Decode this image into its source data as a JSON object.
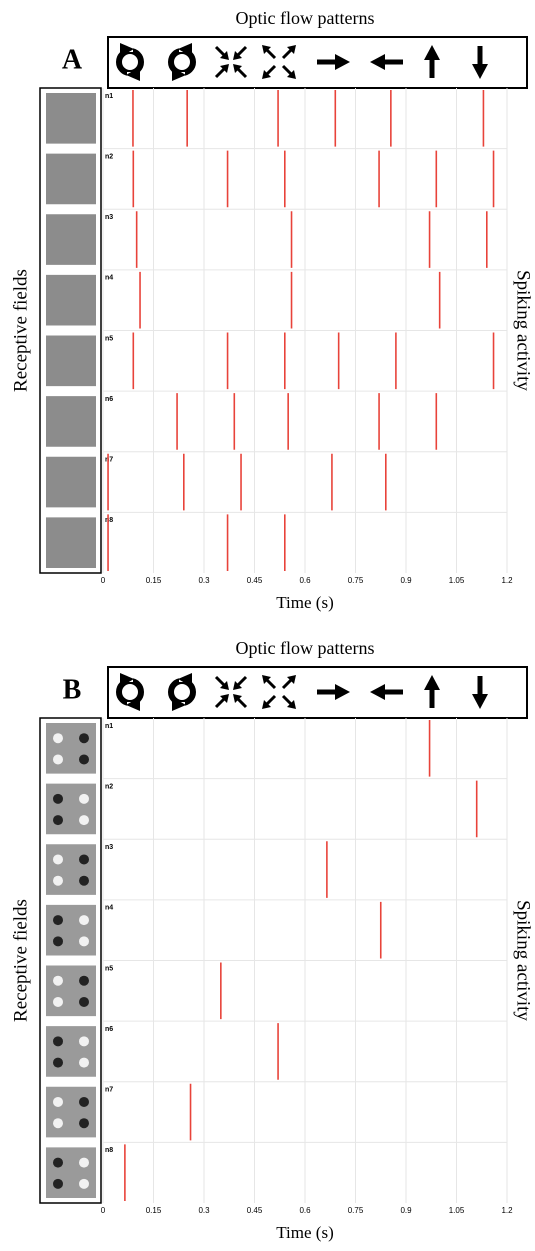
{
  "chart_data": [
    {
      "type": "raster",
      "panel": "A",
      "title": "Optic flow patterns",
      "ylabel": "Receptive fields",
      "y2label": "Spiking activity",
      "xlabel": "Time (s)",
      "xlim": [
        0,
        1.2
      ],
      "xticks": [
        0,
        0.15,
        0.3,
        0.45,
        0.6,
        0.75,
        0.9,
        1.05,
        1.2
      ],
      "grid": true,
      "color": "#e8433a",
      "receptive_fields": "noise",
      "categories": [
        "n1",
        "n2",
        "n3",
        "n4",
        "n5",
        "n6",
        "n7",
        "n8"
      ],
      "spikes": [
        [
          0.089,
          0.25,
          0.52,
          0.69,
          0.855,
          1.13
        ],
        [
          0.09,
          0.37,
          0.54,
          0.82,
          0.99,
          1.16
        ],
        [
          0.1,
          0.56,
          0.97,
          1.14
        ],
        [
          0.11,
          0.56,
          1.0
        ],
        [
          0.09,
          0.37,
          0.54,
          0.7,
          0.87,
          1.16
        ],
        [
          0.22,
          0.39,
          0.55,
          0.82,
          0.99
        ],
        [
          0.015,
          0.24,
          0.41,
          0.68,
          0.84
        ],
        [
          0.015,
          0.37,
          0.54
        ]
      ]
    },
    {
      "type": "raster",
      "panel": "B",
      "title": "Optic flow patterns",
      "ylabel": "Receptive fields",
      "y2label": "Spiking activity",
      "xlabel": "Time (s)",
      "xlim": [
        0,
        1.2
      ],
      "xticks": [
        0,
        0.15,
        0.3,
        0.45,
        0.6,
        0.75,
        0.9,
        1.05,
        1.2
      ],
      "grid": true,
      "color": "#e8433a",
      "receptive_fields": "blobs",
      "categories": [
        "n1",
        "n2",
        "n3",
        "n4",
        "n5",
        "n6",
        "n7",
        "n8"
      ],
      "spikes": [
        [
          0.97
        ],
        [
          1.11
        ],
        [
          0.665
        ],
        [
          0.825
        ],
        [
          0.35
        ],
        [
          0.52
        ],
        [
          0.26
        ],
        [
          0.065
        ]
      ]
    }
  ]
}
